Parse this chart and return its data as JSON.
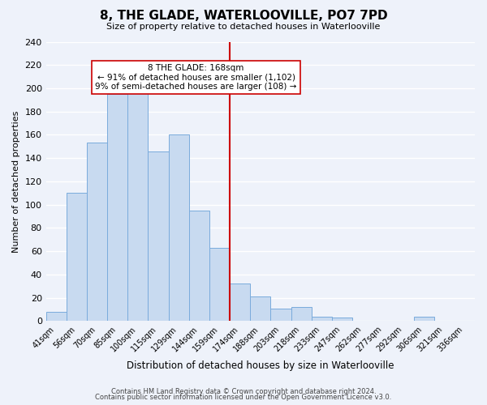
{
  "title": "8, THE GLADE, WATERLOOVILLE, PO7 7PD",
  "subtitle": "Size of property relative to detached houses in Waterlooville",
  "xlabel": "Distribution of detached houses by size in Waterlooville",
  "ylabel": "Number of detached properties",
  "bar_labels": [
    "41sqm",
    "56sqm",
    "70sqm",
    "85sqm",
    "100sqm",
    "115sqm",
    "129sqm",
    "144sqm",
    "159sqm",
    "174sqm",
    "188sqm",
    "203sqm",
    "218sqm",
    "233sqm",
    "247sqm",
    "262sqm",
    "277sqm",
    "292sqm",
    "306sqm",
    "321sqm",
    "336sqm"
  ],
  "bar_values": [
    8,
    110,
    153,
    195,
    196,
    146,
    160,
    95,
    63,
    32,
    21,
    11,
    12,
    4,
    3,
    0,
    0,
    0,
    4,
    0,
    0
  ],
  "bar_color": "#c8daf0",
  "bar_edge_color": "#7aabdc",
  "vline_x_index": 9,
  "annotation_title": "8 THE GLADE: 168sqm",
  "annotation_line1": "← 91% of detached houses are smaller (1,102)",
  "annotation_line2": "9% of semi-detached houses are larger (108) →",
  "vline_color": "#cc0000",
  "ylim": [
    0,
    240
  ],
  "yticks": [
    0,
    20,
    40,
    60,
    80,
    100,
    120,
    140,
    160,
    180,
    200,
    220,
    240
  ],
  "footer_line1": "Contains HM Land Registry data © Crown copyright and database right 2024.",
  "footer_line2": "Contains public sector information licensed under the Open Government Licence v3.0.",
  "background_color": "#eef2fa",
  "grid_color": "#d0d8e8"
}
